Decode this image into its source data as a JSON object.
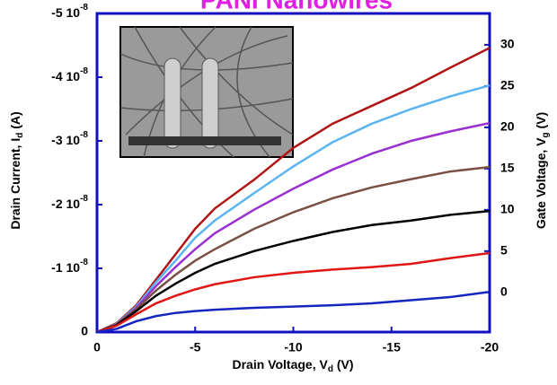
{
  "chart_data": {
    "type": "line",
    "title": "PANI Nanowires",
    "x_label": [
      "Drain Voltage, V",
      "d",
      " (V)"
    ],
    "y_label": [
      "Drain Current, I",
      "d",
      " (A)"
    ],
    "y2_label": [
      "Gate Voltage, V",
      "g",
      " (V)"
    ],
    "x": [
      0,
      -1,
      -2,
      -3,
      -4,
      -5,
      -6,
      -8,
      -10,
      -12,
      -14,
      -16,
      -18,
      -20
    ],
    "xlim": [
      0,
      -20
    ],
    "xticks": [
      0,
      -5,
      -10,
      -15,
      -20
    ],
    "ylim": [
      0,
      -5e-08
    ],
    "yticks": [
      0,
      {
        "value": -1e-08,
        "label": "-1 10",
        "exponent": "-8"
      },
      {
        "value": -2e-08,
        "label": "-2 10",
        "exponent": "-8"
      },
      {
        "value": -3e-08,
        "label": "-3 10",
        "exponent": "-8"
      },
      {
        "value": -4e-08,
        "label": "-4 10",
        "exponent": "-8"
      },
      {
        "value": -5e-08,
        "label": "-5 10",
        "exponent": "-8"
      }
    ],
    "y2lim": [
      -4.8,
      33.8
    ],
    "y2ticks": [
      0,
      5,
      10,
      15,
      20,
      25,
      30
    ],
    "series": [
      {
        "color": "#b01515",
        "values": [
          0,
          -1.4e-09,
          -4.2e-09,
          -8.2e-09,
          -1.22e-08,
          -1.62e-08,
          -1.94e-08,
          -2.39e-08,
          -2.89e-08,
          -3.27e-08,
          -3.55e-08,
          -3.83e-08,
          -4.15e-08,
          -4.46e-08
        ]
      },
      {
        "color": "#5ab4f0",
        "values": [
          0,
          -1.3e-09,
          -4e-09,
          -7.8e-09,
          -1.12e-08,
          -1.48e-08,
          -1.75e-08,
          -2.18e-08,
          -2.6e-08,
          -2.98e-08,
          -3.27e-08,
          -3.5e-08,
          -3.7e-08,
          -3.87e-08
        ]
      },
      {
        "color": "#9b30d0",
        "values": [
          0,
          -1.2e-09,
          -3.8e-09,
          -7.2e-09,
          -1.02e-08,
          -1.3e-08,
          -1.55e-08,
          -1.92e-08,
          -2.25e-08,
          -2.55e-08,
          -2.8e-08,
          -3e-08,
          -3.15e-08,
          -3.28e-08
        ]
      },
      {
        "color": "#7a5044",
        "values": [
          0,
          -1.2e-09,
          -3.6e-09,
          -6.5e-09,
          -9e-09,
          -1.12e-08,
          -1.3e-08,
          -1.62e-08,
          -1.88e-08,
          -2.1e-08,
          -2.27e-08,
          -2.4e-08,
          -2.52e-08,
          -2.59e-08
        ]
      },
      {
        "color": "#000000",
        "values": [
          0,
          -1.1e-09,
          -3.3e-09,
          -5.7e-09,
          -7.6e-09,
          -9.3e-09,
          -1.07e-08,
          -1.27e-08,
          -1.43e-08,
          -1.57e-08,
          -1.68e-08,
          -1.75e-08,
          -1.84e-08,
          -1.9e-08
        ]
      },
      {
        "color": "#e01515",
        "values": [
          0,
          -1e-09,
          -2.8e-09,
          -4.5e-09,
          -5.7e-09,
          -6.7e-09,
          -7.5e-09,
          -8.6e-09,
          -9.3e-09,
          -9.8e-09,
          -1.02e-08,
          -1.07e-08,
          -1.16e-08,
          -1.24e-08
        ]
      },
      {
        "color": "#1525c0",
        "values": [
          0,
          -5e-10,
          -1.7e-09,
          -2.5e-09,
          -3e-09,
          -3.3e-09,
          -3.5e-09,
          -3.8e-09,
          -4e-09,
          -4.2e-09,
          -4.5e-09,
          -5e-09,
          -5.5e-09,
          -6.3e-09
        ]
      }
    ]
  }
}
